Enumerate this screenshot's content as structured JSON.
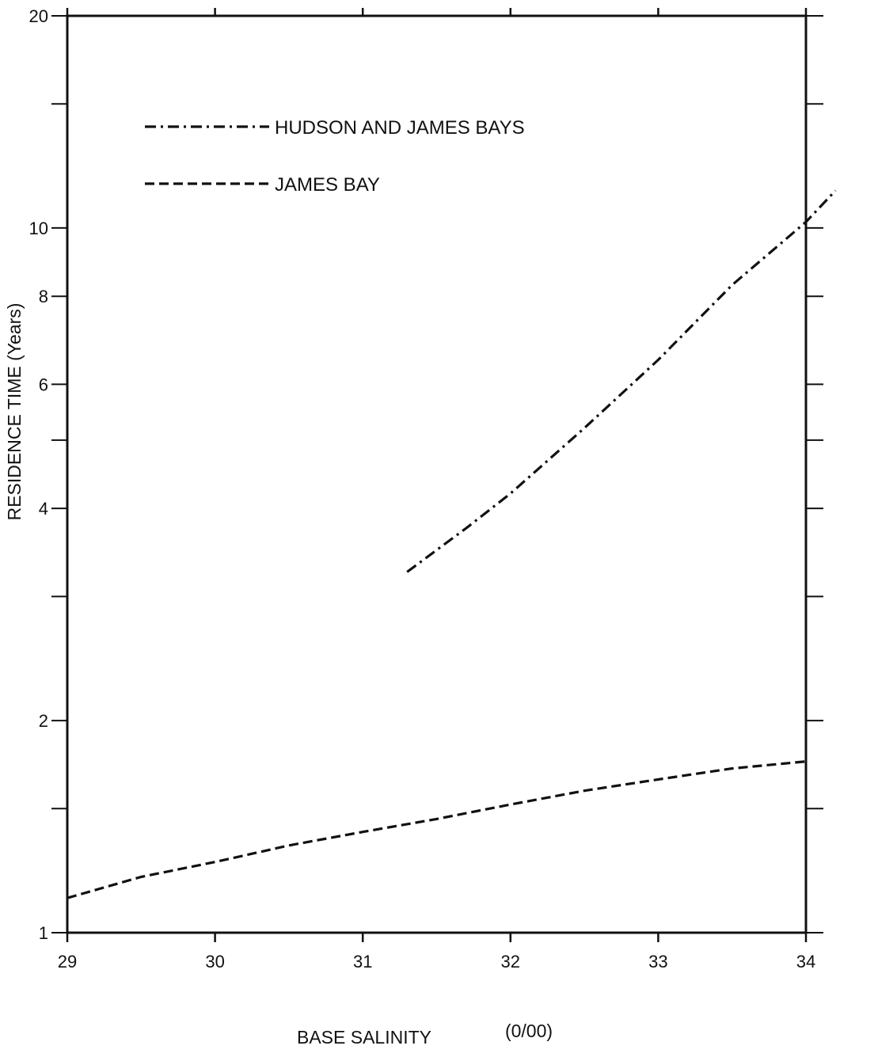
{
  "chart_data": {
    "type": "line",
    "title": "",
    "xlabel": "BASE SALINITY",
    "xlabel_unit": "(0/00)",
    "ylabel": "RESIDENCE TIME (Years)",
    "xlim": [
      29,
      34
    ],
    "ylim": [
      1,
      20
    ],
    "y_scale": "log",
    "grid": false,
    "legend_position": "top-left",
    "x_ticks": [
      29,
      30,
      31,
      32,
      33,
      34
    ],
    "y_tick_labels": [
      1,
      2,
      4,
      6,
      8,
      10,
      20
    ],
    "y_minor_ticks": [
      1.5,
      3,
      5,
      15
    ],
    "series": [
      {
        "name": "HUDSON AND JAMES BAYS",
        "style": "dash-dot",
        "x": [
          31.3,
          31.7,
          32.0,
          32.5,
          33.0,
          33.5,
          34.0,
          34.2
        ],
        "y": [
          3.25,
          3.75,
          4.2,
          5.2,
          6.5,
          8.3,
          10.2,
          11.3
        ]
      },
      {
        "name": "JAMES BAY",
        "style": "dashed",
        "x": [
          29.0,
          29.5,
          30.0,
          30.5,
          31.0,
          31.5,
          32.0,
          32.5,
          33.0,
          33.5,
          34.0
        ],
        "y": [
          1.12,
          1.2,
          1.26,
          1.33,
          1.39,
          1.45,
          1.52,
          1.59,
          1.65,
          1.71,
          1.75
        ]
      }
    ]
  }
}
